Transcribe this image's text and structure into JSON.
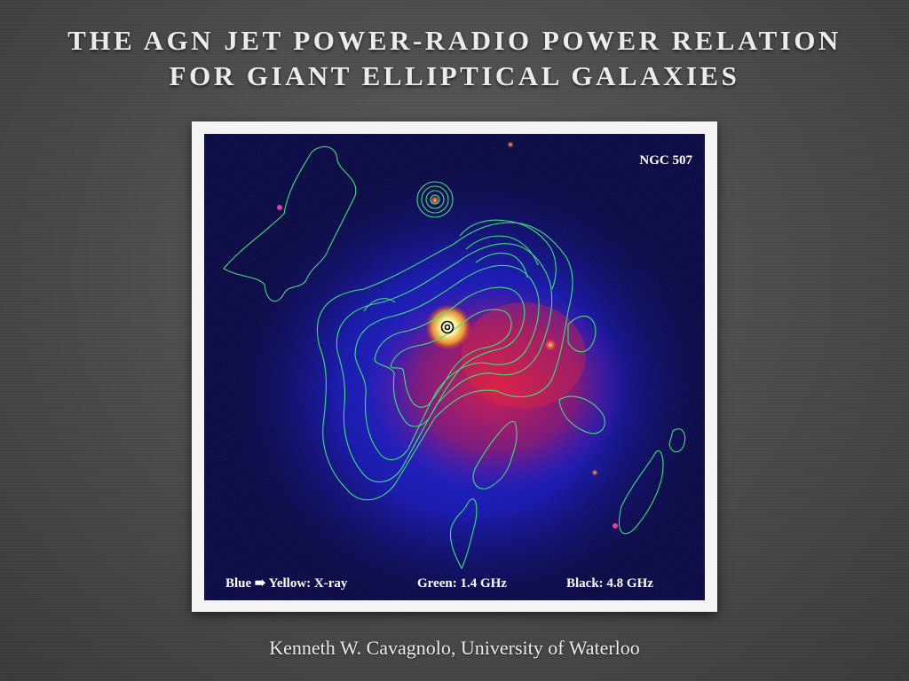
{
  "slide": {
    "title_line1": "THE AGN JET POWER-RADIO POWER RELATION",
    "title_line2": "FOR GIANT ELLIPTICAL GALAXIES",
    "author": "Kenneth W. Cavagnolo, University of Waterloo"
  },
  "figure": {
    "galaxy_label": "NGC 507",
    "legend_xray": "Blue ➠ Yellow: X-ray",
    "legend_green": "Green: 1.4 GHz",
    "legend_black": "Black: 4.8 GHz",
    "colors": {
      "background": "#05032e",
      "xray_low": "#1a1acc",
      "xray_mid": "#d4102a",
      "xray_high": "#ffe84a",
      "radio_1_4GHz": "#3fe07a",
      "radio_4_8GHz": "#000000"
    }
  }
}
